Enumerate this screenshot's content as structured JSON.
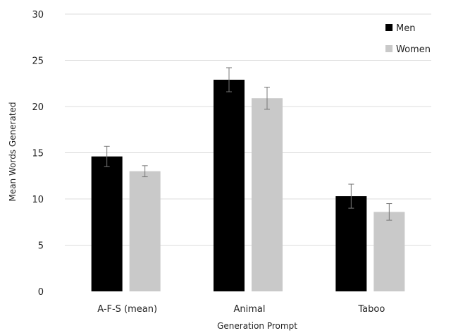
{
  "chart_data": {
    "type": "bar",
    "title": "",
    "xlabel": "Generation Prompt",
    "ylabel": "Mean Words Generated",
    "ylim": [
      0,
      30
    ],
    "yticks": [
      "0",
      "5",
      "10",
      "15",
      "20",
      "25",
      "30"
    ],
    "grid": true,
    "legend_position": "top-right",
    "categories": [
      "A-F-S (mean)",
      "Animal",
      "Taboo"
    ],
    "series": [
      {
        "name": "Men",
        "color": "#000000",
        "values": [
          14.6,
          22.9,
          10.3
        ],
        "errors": [
          1.1,
          1.3,
          1.3
        ]
      },
      {
        "name": "Women",
        "color": "#c9c9c9",
        "values": [
          13.0,
          20.9,
          8.6
        ],
        "errors": [
          0.6,
          1.2,
          0.9
        ]
      }
    ]
  }
}
